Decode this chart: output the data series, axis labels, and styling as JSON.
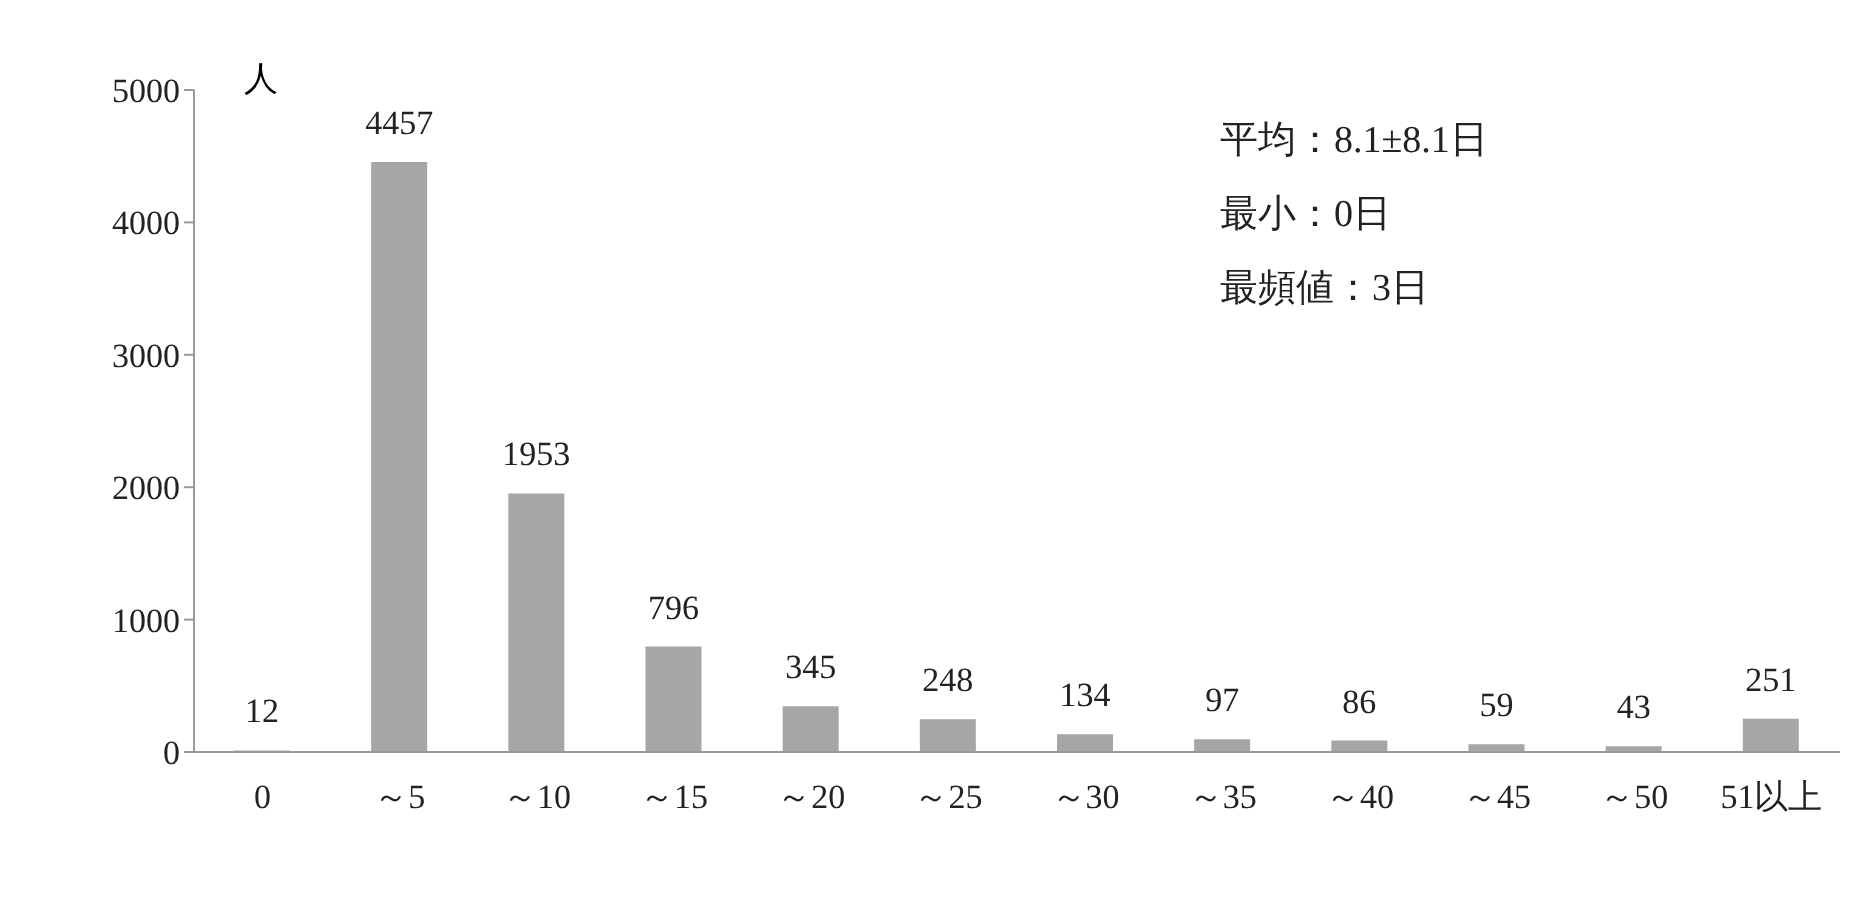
{
  "chart_data": {
    "type": "bar",
    "ylabel": "人",
    "categories": [
      "0",
      "～5",
      "～10",
      "～15",
      "～20",
      "～25",
      "～30",
      "～35",
      "～40",
      "～45",
      "～50",
      "51以上"
    ],
    "values": [
      12,
      4457,
      1953,
      796,
      345,
      248,
      134,
      97,
      86,
      59,
      43,
      251
    ],
    "color": "#a6a6a6",
    "ylim": [
      0,
      5000
    ],
    "yticks": [
      0,
      1000,
      2000,
      3000,
      4000,
      5000
    ],
    "grid": false,
    "data_labels": true,
    "legend": false,
    "annotations": [
      "平均：8.1±8.1日",
      "最小：0日",
      "最頻値：3日"
    ]
  }
}
